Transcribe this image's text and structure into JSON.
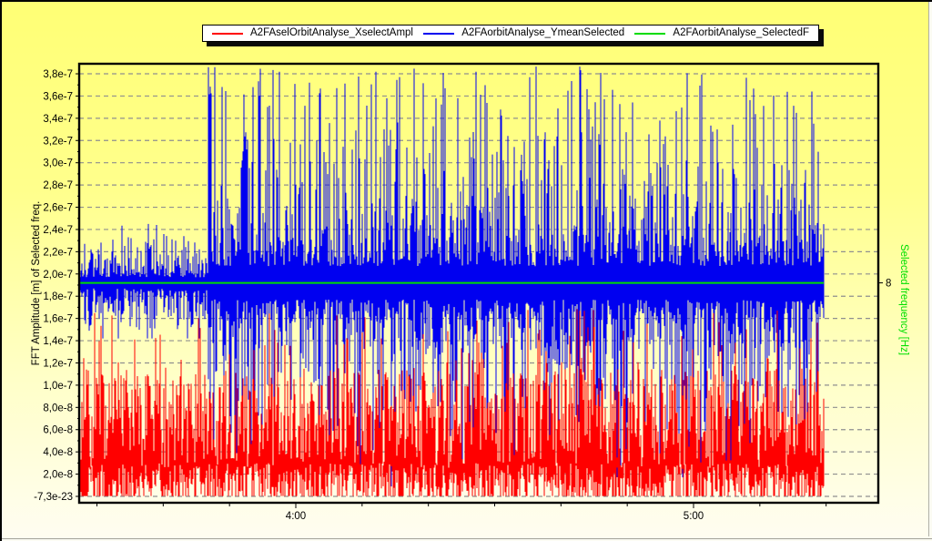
{
  "window": {
    "background_top_color": "#ffff75",
    "background_bottom_color": "#fffdf2",
    "frame_color": "#000000"
  },
  "chart_data": {
    "type": "line",
    "title": "",
    "grid": "horizontal dashed gridlines only",
    "legend_position": "top, floating white box with black drop shadow",
    "x_axis": {
      "label": "",
      "unit": "time of day",
      "major_tick_labels": [
        "4:00",
        "5:00"
      ],
      "minor_ticks_between_majors": 6,
      "visible_data_start": "3:27",
      "visible_data_end": "5:20",
      "blue_amplitude_jump_at": "3:47"
    },
    "y_axis_left": {
      "label": "FFT Amplitude [m] of Selected freq.",
      "label_color": "#000000",
      "ticks": [
        {
          "label": "3,8e-7",
          "value": 3.8e-07
        },
        {
          "label": "3,6e-7",
          "value": 3.6e-07
        },
        {
          "label": "3,4e-7",
          "value": 3.4e-07
        },
        {
          "label": "3,2e-7",
          "value": 3.2e-07
        },
        {
          "label": "3,0e-7",
          "value": 3e-07
        },
        {
          "label": "2,8e-7",
          "value": 2.8e-07
        },
        {
          "label": "2,6e-7",
          "value": 2.6e-07
        },
        {
          "label": "2,4e-7",
          "value": 2.4e-07
        },
        {
          "label": "2,2e-7",
          "value": 2.2e-07
        },
        {
          "label": "2,0e-7",
          "value": 2e-07
        },
        {
          "label": "1,8e-7",
          "value": 1.8e-07
        },
        {
          "label": "1,6e-7",
          "value": 1.6e-07
        },
        {
          "label": "1,4e-7",
          "value": 1.4e-07
        },
        {
          "label": "1,2e-7",
          "value": 1.2e-07
        },
        {
          "label": "1,0e-7",
          "value": 1e-07
        },
        {
          "label": "8,0e-8",
          "value": 8e-08
        },
        {
          "label": "6,0e-8",
          "value": 6e-08
        },
        {
          "label": "4,0e-8",
          "value": 4e-08
        },
        {
          "label": "2,0e-8",
          "value": 2e-08
        },
        {
          "label": "-7,3e-23",
          "value": 0
        }
      ],
      "min": -7.3e-23,
      "max": 3.89e-07
    },
    "y_axis_right": {
      "label": "Selected frequency [Hz]",
      "label_color": "#00e000",
      "ticks": [
        {
          "label": "8",
          "value": 8,
          "left_axis_equivalent": 1.92e-07
        }
      ]
    },
    "series": [
      {
        "name": "A2FAselOrbitAnalyse_XselectAmpl",
        "color": "#ff0000",
        "kind": "dense noisy line",
        "description": "FFT amplitude of X; dense band from ~0 up to ~1.1e-7 m with frequent spikes to ~1.5-1.7e-7 m, uniform over whole time range",
        "profile": {
          "bottom_min": 0,
          "bottom_max": 3e-08,
          "top_min": 2.5e-08,
          "top_max": 1.15e-07,
          "spike_max": 1.7e-07,
          "spike_prob": 0.11,
          "dip_prob": 0.35
        }
      },
      {
        "name": "A2FAorbitAnalyse_YmeanSelected",
        "color": "#0000f0",
        "kind": "dense noisy line",
        "description": "FFT amplitude of Y; quiet band 1.45e-7..2.45e-7 m around 1.92e-7 until ~3:47, then wide-band 0.1e-7..2.9e-7 core with spikes to ~3.87e-7 m",
        "profile": {
          "center": 1.92e-07,
          "quiet_until_frac": 0.1735,
          "quiet_halfband_typ": 3.5e-08,
          "quiet_max": 2.45e-07,
          "quiet_min": 1.42e-07,
          "loud_halfband_typ": 1.1e-07,
          "loud_spike_max": 3.87e-07,
          "loud_dip_min": 5e-09,
          "loud_spike_prob": 0.2,
          "loud_dip_prob": 0.16
        }
      },
      {
        "name": "A2FAorbitAnalyse_SelectedF",
        "color": "#00dc00",
        "kind": "constant horizontal line",
        "axis": "right",
        "constant_value": 8,
        "left_axis_equivalent": 1.92e-07
      }
    ]
  }
}
